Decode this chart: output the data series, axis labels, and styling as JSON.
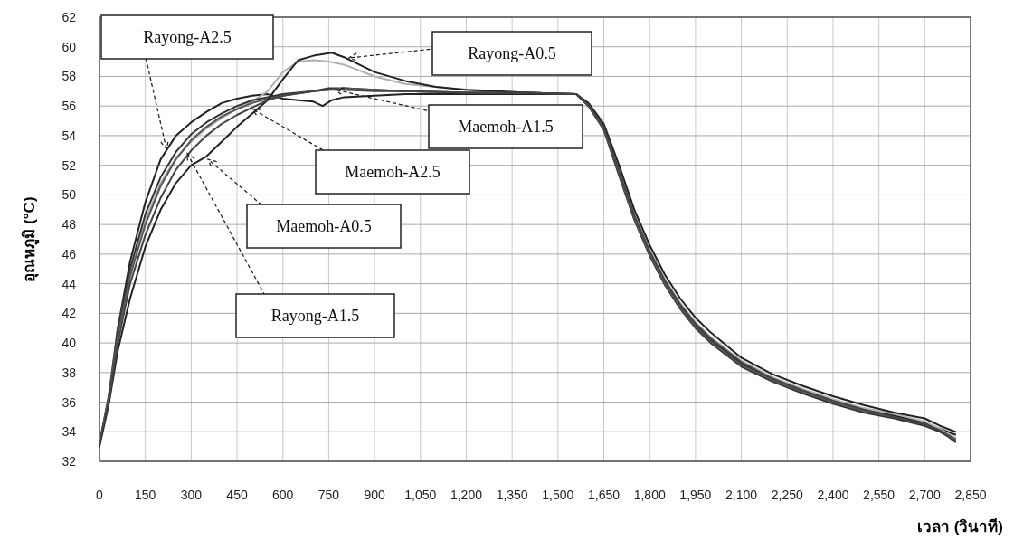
{
  "chart_data": {
    "type": "line",
    "xlabel": "เวลา (วินาที)",
    "ylabel": "อุณหภูมิ (°C)",
    "xlim": [
      0,
      2850
    ],
    "ylim": [
      32,
      62
    ],
    "xticks": [
      0,
      150,
      300,
      450,
      600,
      750,
      900,
      {
        "value": 1050,
        "label": "1,050"
      },
      {
        "value": 1200,
        "label": "1,200"
      },
      {
        "value": 1350,
        "label": "1,350"
      },
      {
        "value": 1500,
        "label": "1,500"
      },
      {
        "value": 1650,
        "label": "1,650"
      },
      {
        "value": 1800,
        "label": "1,800"
      },
      {
        "value": 1950,
        "label": "1,950"
      },
      {
        "value": 2100,
        "label": "2,100"
      },
      {
        "value": 2250,
        "label": "2,250"
      },
      {
        "value": 2400,
        "label": "2,400"
      },
      {
        "value": 2550,
        "label": "2,550"
      },
      {
        "value": 2700,
        "label": "2,700"
      },
      {
        "value": 2850,
        "label": "2,850"
      }
    ],
    "yticks": [
      32,
      34,
      36,
      38,
      40,
      42,
      44,
      46,
      48,
      50,
      52,
      54,
      56,
      58,
      60,
      62
    ],
    "grid": true,
    "marker": "none",
    "line_style": "solid",
    "series": [
      {
        "color": "#222222",
        "x": [
          0,
          30,
          60,
          100,
          150,
          200,
          250,
          300,
          350,
          400,
          450,
          500,
          550,
          600,
          650,
          700,
          730,
          760,
          800,
          900,
          1000,
          1200,
          1400,
          1560,
          1600,
          1650,
          1700,
          1750,
          1800,
          1850,
          1900,
          1950,
          2000,
          2100,
          2200,
          2300,
          2400,
          2500,
          2600,
          2700,
          2750,
          2800
        ],
        "values": [
          33.2,
          36,
          41,
          45.5,
          49.5,
          52.4,
          54,
          54.9,
          55.6,
          56.2,
          56.5,
          56.7,
          56.8,
          56.5,
          56.4,
          56.3,
          56.0,
          56.4,
          56.6,
          56.7,
          56.8,
          56.8,
          56.8,
          56.8,
          56.0,
          54.5,
          51.5,
          48.5,
          46,
          44,
          42.5,
          41.2,
          40.2,
          38.6,
          37.6,
          36.8,
          36.1,
          35.5,
          35.1,
          34.6,
          34.2,
          33.8
        ]
      },
      {
        "color": "#b0b0b0",
        "x": [
          0,
          30,
          60,
          100,
          150,
          200,
          250,
          300,
          350,
          400,
          450,
          500,
          550,
          600,
          650,
          700,
          750,
          800,
          900,
          1000,
          1200,
          1400,
          1560,
          1600,
          1650,
          1700,
          1750,
          1800,
          1850,
          1900,
          1950,
          2000,
          2100,
          2200,
          2300,
          2400,
          2500,
          2600,
          2700,
          2750,
          2800
        ],
        "values": [
          33.2,
          36.5,
          41,
          44.8,
          48.3,
          50.8,
          52.5,
          53.6,
          54.5,
          55.2,
          55.8,
          56.3,
          57,
          58.3,
          59,
          59.1,
          59,
          58.8,
          58,
          57.5,
          57.1,
          56.9,
          56.8,
          56.1,
          54.6,
          51.7,
          48.7,
          46.3,
          44.3,
          42.7,
          41.4,
          40.4,
          38.8,
          37.7,
          36.9,
          36.2,
          35.6,
          35.2,
          34.7,
          34.2,
          33.6
        ]
      },
      {
        "color": "#333333",
        "x": [
          0,
          30,
          60,
          100,
          150,
          200,
          250,
          300,
          350,
          400,
          450,
          500,
          550,
          600,
          700,
          750,
          800,
          900,
          1000,
          1200,
          1400,
          1560,
          1600,
          1650,
          1700,
          1750,
          1800,
          1850,
          1900,
          1950,
          2000,
          2100,
          2200,
          2300,
          2400,
          2500,
          2600,
          2700,
          2750,
          2800
        ],
        "values": [
          33.2,
          36.3,
          41,
          45,
          48.7,
          51.2,
          52.9,
          54.1,
          54.9,
          55.5,
          56,
          56.4,
          56.6,
          56.8,
          57,
          57.2,
          57.2,
          57.1,
          57,
          56.9,
          56.9,
          56.8,
          56.0,
          54.4,
          51.3,
          48.3,
          45.9,
          43.9,
          42.3,
          41.0,
          40.0,
          38.4,
          37.4,
          36.6,
          35.9,
          35.3,
          34.9,
          34.4,
          34.0,
          33.4
        ]
      },
      {
        "color": "#555555",
        "x": [
          0,
          30,
          60,
          100,
          150,
          200,
          250,
          300,
          350,
          400,
          450,
          500,
          550,
          600,
          700,
          750,
          800,
          900,
          1000,
          1200,
          1400,
          1560,
          1600,
          1650,
          1700,
          1750,
          1800,
          1850,
          1900,
          1950,
          2000,
          2100,
          2200,
          2300,
          2400,
          2500,
          2600,
          2700,
          2750,
          2800
        ],
        "values": [
          33.2,
          36.3,
          40.5,
          44.5,
          48,
          50.6,
          52.4,
          53.7,
          54.6,
          55.3,
          55.8,
          56.2,
          56.5,
          56.7,
          57,
          57.1,
          57.2,
          57.1,
          57,
          56.9,
          56.9,
          56.8,
          56.0,
          54.5,
          51.4,
          48.4,
          46.0,
          44.0,
          42.4,
          41.1,
          40.1,
          38.5,
          37.5,
          36.7,
          36.0,
          35.4,
          35.0,
          34.5,
          34.1,
          33.5
        ]
      },
      {
        "color": "#222222",
        "x": [
          0,
          30,
          60,
          100,
          150,
          200,
          250,
          300,
          350,
          400,
          450,
          500,
          550,
          600,
          650,
          700,
          760,
          800,
          850,
          900,
          1000,
          1100,
          1200,
          1300,
          1400,
          1560,
          1600,
          1650,
          1700,
          1750,
          1800,
          1850,
          1900,
          1950,
          2000,
          2100,
          2200,
          2300,
          2400,
          2500,
          2600,
          2700,
          2750,
          2800
        ],
        "values": [
          33,
          35.8,
          39.5,
          43,
          46.5,
          49,
          50.8,
          52,
          52.6,
          53.6,
          54.6,
          55.5,
          56.4,
          57.8,
          59.1,
          59.4,
          59.6,
          59.3,
          58.8,
          58.3,
          57.7,
          57.3,
          57.1,
          57,
          56.9,
          56.8,
          56.2,
          54.8,
          52,
          49,
          46.6,
          44.6,
          43,
          41.7,
          40.7,
          39,
          37.9,
          37.1,
          36.4,
          35.8,
          35.3,
          34.9,
          34.4,
          34.0
        ]
      },
      {
        "color": "#444444",
        "x": [
          0,
          30,
          60,
          100,
          150,
          200,
          250,
          300,
          350,
          400,
          450,
          500,
          550,
          600,
          700,
          750,
          800,
          900,
          1000,
          1200,
          1400,
          1560,
          1600,
          1650,
          1700,
          1750,
          1800,
          1850,
          1900,
          1950,
          2000,
          2100,
          2200,
          2300,
          2400,
          2500,
          2600,
          2700,
          2750,
          2800
        ],
        "values": [
          33.2,
          36,
          40,
          44,
          47.3,
          49.8,
          51.7,
          53,
          54,
          54.8,
          55.4,
          55.9,
          56.4,
          56.7,
          57,
          57.1,
          57.1,
          57.0,
          57,
          56.9,
          56.9,
          56.8,
          56.1,
          54.6,
          51.6,
          48.6,
          46.2,
          44.2,
          42.6,
          41.3,
          40.3,
          38.7,
          37.6,
          36.8,
          36.1,
          35.5,
          35.0,
          34.5,
          34.1,
          33.3
        ]
      }
    ],
    "annotations": [
      {
        "text": "Rayong-A2.5",
        "x": 219,
        "y": 53.1
      },
      {
        "text": "Rayong-A0.5",
        "x": 816,
        "y": 59.25
      },
      {
        "text": "Maemoh-A1.5",
        "x": 772,
        "y": 57.1
      },
      {
        "text": "Maemoh-A2.5",
        "x": 500,
        "y": 55.8
      },
      {
        "text": "Maemoh-A0.5",
        "x": 355,
        "y": 52.4
      },
      {
        "text": "Rayong-A1.5",
        "x": 287,
        "y": 52.8
      }
    ]
  }
}
